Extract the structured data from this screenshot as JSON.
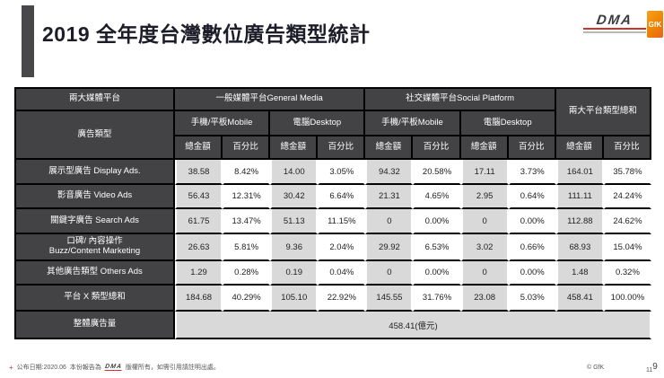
{
  "header": {
    "title": "2019 全年度台灣數位廣告類型統計",
    "logos": {
      "dma": "DMA",
      "gfk": "GfK"
    }
  },
  "colors": {
    "header_bg": "#434346",
    "cell_gray": "#d9d9d9",
    "border_black": "#000000",
    "gfk_orange": "#ef8200",
    "dma_red": "#c8332b"
  },
  "table": {
    "header": {
      "platform_label": "兩大媒體平台",
      "ad_type_label": "廣告類型",
      "group_general": "一般媒體平台General Media",
      "group_social": "社交媒體平台Social Platform",
      "grand_total_label": "兩大平台類型總和",
      "device_mobile": "手機/平板Mobile",
      "device_desktop": "電腦Desktop",
      "amount_label": "總金額",
      "percent_label": "百分比"
    },
    "rows": [
      {
        "label": "展示型廣告 Display Ads.",
        "values": [
          "38.58",
          "8.42%",
          "14.00",
          "3.05%",
          "94.32",
          "20.58%",
          "17.11",
          "3.73%",
          "164.01",
          "35.78%"
        ]
      },
      {
        "label": "影音廣告 Video Ads",
        "values": [
          "56.43",
          "12.31%",
          "30.42",
          "6.64%",
          "21.31",
          "4.65%",
          "2.95",
          "0.64%",
          "111.11",
          "24.24%"
        ]
      },
      {
        "label": "關鍵字廣告 Search Ads",
        "values": [
          "61.75",
          "13.47%",
          "51.13",
          "11.15%",
          "0",
          "0.00%",
          "0",
          "0.00%",
          "112.88",
          "24.62%"
        ]
      },
      {
        "label": "口碑/ 內容操作\nBuzz/Content Marketing",
        "values": [
          "26.63",
          "5.81%",
          "9.36",
          "2.04%",
          "29.92",
          "6.53%",
          "3.02",
          "0.66%",
          "68.93",
          "15.04%"
        ]
      },
      {
        "label": "其他廣告類型 Others Ads",
        "values": [
          "1.29",
          "0.28%",
          "0.19",
          "0.04%",
          "0",
          "0.00%",
          "0",
          "0.00%",
          "1.48",
          "0.32%"
        ]
      },
      {
        "label": "平台 X 類型總和",
        "values": [
          "184.68",
          "40.29%",
          "105.10",
          "22.92%",
          "145.55",
          "31.76%",
          "23.08",
          "5.03%",
          "458.41",
          "100.00%"
        ]
      }
    ],
    "total_row": {
      "label": "整體廣告量",
      "value": "458.41(億元)"
    }
  },
  "footer": {
    "star": "+",
    "note_date": "公布日期:2020.06",
    "note_before_logo": "本份報告為",
    "note_logo": "DMA",
    "note_after_logo": "版權所有，如需引用請註明出處。",
    "copyright": "© GfK",
    "page_number_small": "11",
    "page_number_large": "9"
  }
}
